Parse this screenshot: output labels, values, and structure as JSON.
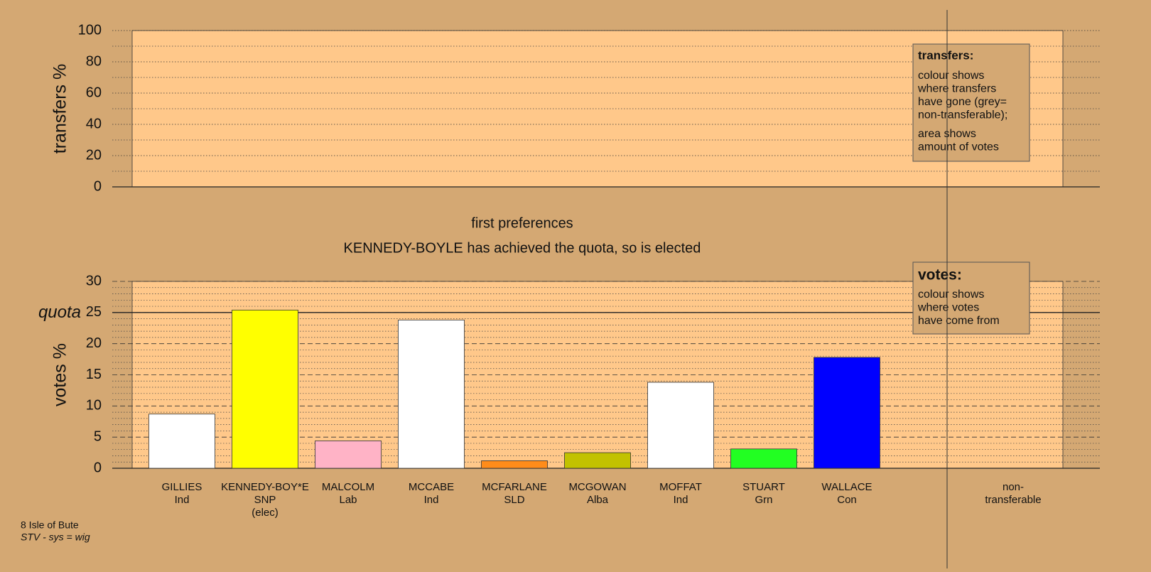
{
  "chart_data": [
    {
      "type": "bar",
      "ylabel": "transfers %",
      "ylim": [
        0,
        100
      ],
      "yticks": [
        0,
        20,
        40,
        60,
        80,
        100
      ],
      "minor_yticks": [
        10,
        30,
        50,
        70,
        90
      ],
      "grid": "dotted",
      "legend": {
        "title": "transfers:",
        "paragraphs": [
          [
            "colour shows",
            "where transfers",
            "have gone (grey=",
            "non-transferable);"
          ],
          [
            "area shows",
            "amount of votes"
          ]
        ]
      }
    },
    {
      "type": "bar",
      "title": "first preferences",
      "subtitle": "KENNEDY-BOYLE has achieved the quota, so is elected",
      "ylabel": "votes %",
      "categories": [
        [
          "GILLIES",
          "Ind"
        ],
        [
          "KENNEDY-BOY*E",
          "SNP",
          "(elec)"
        ],
        [
          "MALCOLM",
          "Lab"
        ],
        [
          "MCCABE",
          "Ind"
        ],
        [
          "MCFARLANE",
          "SLD"
        ],
        [
          "MCGOWAN",
          "Alba"
        ],
        [
          "MOFFAT",
          "Ind"
        ],
        [
          "STUART",
          "Grn"
        ],
        [
          "WALLACE",
          "Con"
        ],
        [
          "non-",
          "transferable"
        ]
      ],
      "values": [
        8.7,
        25.4,
        4.4,
        23.8,
        1.2,
        2.5,
        13.8,
        3.1,
        17.8,
        null
      ],
      "colors": [
        "#ffffff",
        "#ffff00",
        "#ffb3c6",
        "#ffffff",
        "#ff8c1a",
        "#c2c200",
        "#ffffff",
        "#22ff22",
        "#0000ff",
        "#aaaaaa"
      ],
      "ylim": [
        0,
        30
      ],
      "yticks": [
        0,
        5,
        10,
        15,
        20,
        25,
        30
      ],
      "minor_yticks": [
        1,
        2,
        3,
        4,
        6,
        7,
        8,
        9,
        11,
        12,
        13,
        14,
        16,
        17,
        18,
        19,
        21,
        22,
        23,
        24,
        26,
        27,
        28,
        29
      ],
      "grid": "dashed",
      "quota": {
        "value": 25,
        "label": "quota"
      },
      "legend": {
        "title": "votes:",
        "paragraphs": [
          [
            "colour shows",
            "where votes",
            "have come from"
          ]
        ]
      }
    }
  ],
  "footer": {
    "lines": [
      "8 Isle of Bute",
      "STV - sys = wig"
    ]
  }
}
